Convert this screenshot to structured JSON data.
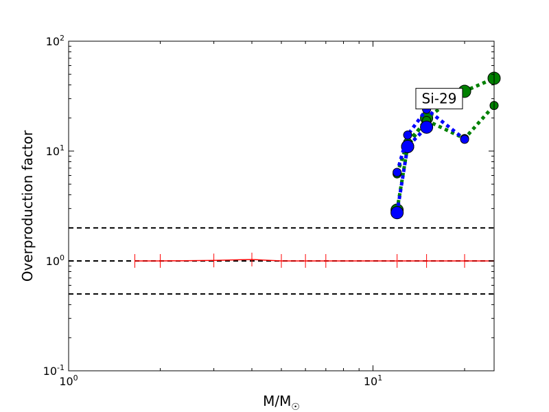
{
  "chart_data": {
    "type": "line",
    "xscale": "log",
    "yscale": "log",
    "xlim": [
      1,
      25
    ],
    "ylim": [
      0.1,
      100
    ],
    "xlabel": {
      "main": "M/M",
      "sub": "☉"
    },
    "ylabel": "Overproduction factor",
    "x_ticks": [
      {
        "base": "10",
        "exp": "0",
        "value": 1
      },
      {
        "base": "10",
        "exp": "1",
        "value": 10
      }
    ],
    "y_ticks": [
      {
        "base": "10",
        "exp": "-1",
        "value": 0.1
      },
      {
        "base": "10",
        "exp": "0",
        "value": 1
      },
      {
        "base": "10",
        "exp": "1",
        "value": 10
      },
      {
        "base": "10",
        "exp": "2",
        "value": 100
      }
    ],
    "annotation": {
      "text": "Si-29",
      "x": 16.5,
      "y": 30
    },
    "reference_lines": [
      {
        "y": 2.0,
        "color": "#000000",
        "style": "dashed"
      },
      {
        "y": 1.0,
        "color": "#000000",
        "style": "dashed"
      },
      {
        "y": 0.5,
        "color": "#000000",
        "style": "dashed"
      }
    ],
    "series": [
      {
        "color": "#ff0000",
        "style": "solid",
        "marker": "vline",
        "x": [
          1.65,
          2.0,
          3.0,
          4.0,
          5.0,
          6.0,
          7.0,
          12.0,
          15.0,
          20.0,
          25.0
        ],
        "y": [
          1.0,
          1.0,
          1.01,
          1.03,
          1.0,
          1.0,
          1.0,
          1.0,
          1.0,
          1.0,
          1.0
        ]
      },
      {
        "color": "#008000",
        "style": "dotted",
        "marker": "circle",
        "marker_size": 9,
        "x": [
          12.0,
          13.0,
          15.0,
          20.0,
          25.0
        ],
        "y": [
          2.9,
          11.0,
          20.0,
          35.0,
          46.0
        ]
      },
      {
        "color": "#008000",
        "style": "dotted",
        "marker": "circle",
        "marker_size": 6,
        "x": [
          12.0,
          13.0,
          15.0,
          20.0,
          25.0
        ],
        "y": [
          6.2,
          12.0,
          19.0,
          13.0,
          26.0
        ]
      },
      {
        "color": "#0000ff",
        "style": "dotted",
        "marker": "circle",
        "marker_size": 9,
        "x": [
          12.0,
          13.0,
          15.0
        ],
        "y": [
          2.75,
          11.0,
          16.5
        ]
      },
      {
        "color": "#0000ff",
        "style": "dotted",
        "marker": "circle",
        "marker_size": 6,
        "x": [
          12.0,
          13.0,
          15.0,
          20.0
        ],
        "y": [
          6.4,
          14.0,
          24.0,
          12.8
        ]
      }
    ]
  }
}
